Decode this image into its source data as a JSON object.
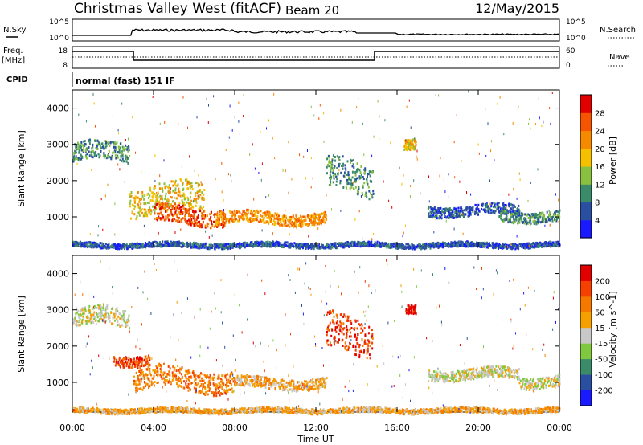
{
  "header": {
    "station": "Christmas Valley West (fitACF)",
    "beam": "Beam 20",
    "date": "12/May/2015"
  },
  "status": {
    "nsky_label": "N.Sky",
    "nsky_ticks": [
      "10^5",
      "10^0"
    ],
    "nsearch_label": "N.Search",
    "freq_label_1": "Freq.",
    "freq_label_2": "[MHz]",
    "freq_ticks": [
      "18",
      "8"
    ],
    "nave_ticks": [
      "60",
      "0"
    ],
    "nave_label": "Nave",
    "cpid_label": "CPID",
    "cpid_value": "normal (fast) 151 IF"
  },
  "chart_data": [
    {
      "type": "heatmap",
      "name": "power",
      "ylabel": "Slant Range [km]",
      "colorbar_label": "Power [dB]",
      "y_ticks": [
        "1000",
        "2000",
        "3000",
        "4000"
      ],
      "y_values": [
        1000,
        2000,
        3000,
        4000
      ],
      "ylim": [
        180,
        4500
      ],
      "xlim": [
        0,
        24
      ],
      "colorbar_ticks": [
        "4",
        "8",
        "12",
        "16",
        "20",
        "24",
        "28"
      ],
      "colors": [
        "#1a1aff",
        "#2a4fa0",
        "#3b8a6a",
        "#8ac040",
        "#f5c000",
        "#f58a00",
        "#f55500",
        "#e00000"
      ],
      "features": [
        {
          "t0": 0.0,
          "t1": 2.8,
          "r0": 2550,
          "r1": 3050,
          "level": 2
        },
        {
          "t0": 2.8,
          "t1": 6.5,
          "r0": 1150,
          "r1": 1900,
          "level": 4
        },
        {
          "t0": 4.0,
          "t1": 7.5,
          "r0": 820,
          "r1": 1300,
          "level": 6
        },
        {
          "t0": 7.0,
          "t1": 12.5,
          "r0": 830,
          "r1": 1150,
          "level": 5
        },
        {
          "t0": 12.5,
          "t1": 14.8,
          "r0": 1700,
          "r1": 2600,
          "level": 2
        },
        {
          "t0": 16.3,
          "t1": 16.9,
          "r0": 2800,
          "r1": 3100,
          "level": 4
        },
        {
          "t0": 17.5,
          "t1": 22.0,
          "r0": 1050,
          "r1": 1350,
          "level": 1
        },
        {
          "t0": 21.0,
          "t1": 24.0,
          "r0": 900,
          "r1": 1200,
          "level": 2
        },
        {
          "t0": 0.0,
          "t1": 24.0,
          "r0": 180,
          "r1": 320,
          "level": 1
        }
      ]
    },
    {
      "type": "heatmap",
      "name": "velocity",
      "ylabel": "Slant Range [km]",
      "colorbar_label": "Velocity [m s^-1]",
      "y_ticks": [
        "1000",
        "2000",
        "3000",
        "4000"
      ],
      "y_values": [
        1000,
        2000,
        3000,
        4000
      ],
      "ylim": [
        180,
        4500
      ],
      "xlim": [
        0,
        24
      ],
      "colorbar_ticks": [
        "200",
        "100",
        "50",
        "15",
        "-15",
        "-50",
        "-100",
        "-200"
      ],
      "colors": [
        "#1a1aff",
        "#2a4fa0",
        "#3b8a6a",
        "#80c840",
        "#c8c8c8",
        "#f5a000",
        "#f57800",
        "#f54000",
        "#e00000"
      ],
      "features": [
        {
          "t0": 0.0,
          "t1": 2.8,
          "r0": 2550,
          "r1": 3050,
          "level": 4
        },
        {
          "t0": 2.0,
          "t1": 3.8,
          "r0": 1500,
          "r1": 1800,
          "level": 7
        },
        {
          "t0": 3.0,
          "t1": 8.0,
          "r0": 800,
          "r1": 1400,
          "level": 6
        },
        {
          "t0": 8.0,
          "t1": 12.5,
          "r0": 850,
          "r1": 1150,
          "level": 5
        },
        {
          "t0": 12.5,
          "t1": 14.8,
          "r0": 1800,
          "r1": 2800,
          "level": 7
        },
        {
          "t0": 16.4,
          "t1": 16.9,
          "r0": 2850,
          "r1": 3100,
          "level": 8
        },
        {
          "t0": 17.5,
          "t1": 22.0,
          "r0": 1100,
          "r1": 1400,
          "level": 4
        },
        {
          "t0": 22.0,
          "t1": 24.0,
          "r0": 900,
          "r1": 1200,
          "level": 4
        },
        {
          "t0": 0.0,
          "t1": 24.0,
          "r0": 180,
          "r1": 320,
          "level": 5
        }
      ]
    }
  ],
  "x_axis": {
    "label": "Time UT",
    "ticks": [
      "00:00",
      "04:00",
      "08:00",
      "12:00",
      "16:00",
      "20:00",
      "00:00"
    ],
    "tick_hours": [
      0,
      4,
      8,
      12,
      16,
      20,
      24
    ]
  }
}
